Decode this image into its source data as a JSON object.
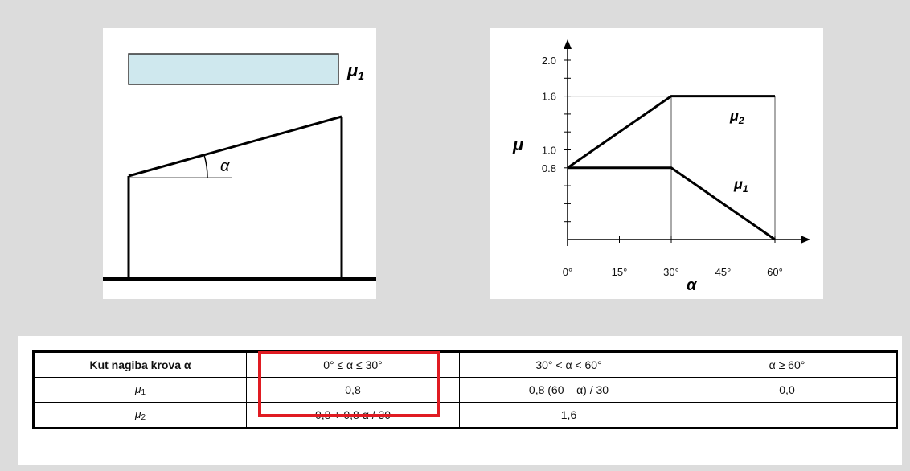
{
  "roof_diagram": {
    "load_label": "μ",
    "load_sub": "1",
    "angle_label": "α"
  },
  "chart": {
    "y_axis_label": "μ",
    "x_axis_label": "α",
    "y_ticks": [
      "2.0",
      "1.6",
      "1.0",
      "0.8"
    ],
    "x_ticks": [
      "0°",
      "15°",
      "30°",
      "45°",
      "60°"
    ],
    "mu2_label": "μ",
    "mu2_sub": "2",
    "mu1_label": "μ",
    "mu1_sub": "1"
  },
  "chart_data": {
    "type": "line",
    "x": [
      0,
      15,
      30,
      45,
      60
    ],
    "xlabel": "α",
    "ylabel": "μ",
    "xlim": [
      0,
      60
    ],
    "ylim": [
      0,
      2.0
    ],
    "series": [
      {
        "name": "μ2",
        "points": [
          [
            0,
            0.8
          ],
          [
            30,
            1.6
          ],
          [
            60,
            1.6
          ]
        ]
      },
      {
        "name": "μ1",
        "points": [
          [
            0,
            0.8
          ],
          [
            30,
            0.8
          ],
          [
            60,
            0.0
          ]
        ]
      }
    ],
    "grid": false
  },
  "table": {
    "header": [
      "Kut nagiba krova α",
      "0° ≤ α ≤ 30°",
      "30° < α < 60°",
      "α ≥ 60°"
    ],
    "rows": [
      {
        "symbol": "μ",
        "sub": "1",
        "cells": [
          "0,8",
          "0,8 (60 – α) / 30",
          "0,0"
        ]
      },
      {
        "symbol": "μ",
        "sub": "2",
        "cells": [
          "0,8 + 0,8 α / 30",
          "1,6",
          "–"
        ]
      }
    ],
    "highlight_color": "#e01b22"
  }
}
